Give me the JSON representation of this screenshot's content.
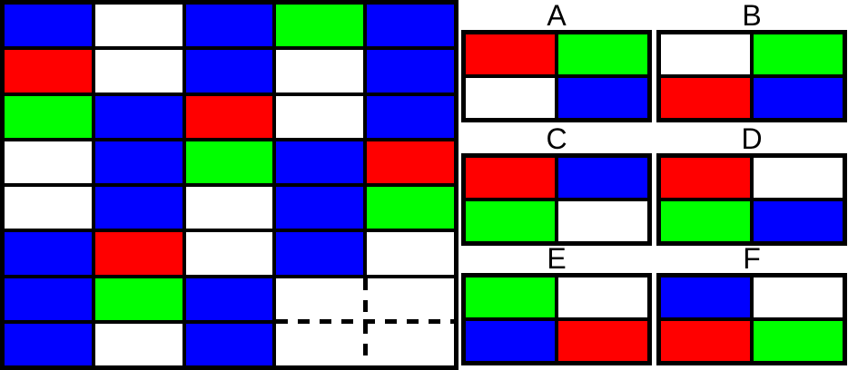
{
  "puzzle": {
    "description": "Pattern completion puzzle: 8x5 colored grid with a missing 2x2 region (dashed outline) and six candidate 2x2 answer tiles",
    "grid": {
      "rows": 8,
      "cols": 5,
      "cells": [
        [
          "blue",
          "white",
          "blue",
          "green",
          "blue"
        ],
        [
          "red",
          "white",
          "blue",
          "white",
          "blue"
        ],
        [
          "green",
          "blue",
          "red",
          "white",
          "blue"
        ],
        [
          "white",
          "blue",
          "green",
          "blue",
          "red"
        ],
        [
          "white",
          "blue",
          "white",
          "blue",
          "green"
        ],
        [
          "blue",
          "red",
          "white",
          "blue",
          "white"
        ],
        [
          "blue",
          "green",
          "blue",
          null,
          null
        ],
        [
          "blue",
          "white",
          "blue",
          null,
          null
        ]
      ],
      "missing_region": {
        "row_start": 7,
        "col_start": 4,
        "rows": 2,
        "cols": 2,
        "fill": "white",
        "divider_style": "dashed"
      }
    },
    "options": [
      {
        "label": "A",
        "cells": [
          [
            "red",
            "green"
          ],
          [
            "white",
            "blue"
          ]
        ]
      },
      {
        "label": "B",
        "cells": [
          [
            "white",
            "green"
          ],
          [
            "red",
            "blue"
          ]
        ]
      },
      {
        "label": "C",
        "cells": [
          [
            "red",
            "blue"
          ],
          [
            "green",
            "white"
          ]
        ]
      },
      {
        "label": "D",
        "cells": [
          [
            "red",
            "white"
          ],
          [
            "green",
            "blue"
          ]
        ]
      },
      {
        "label": "E",
        "cells": [
          [
            "green",
            "white"
          ],
          [
            "blue",
            "red"
          ]
        ]
      },
      {
        "label": "F",
        "cells": [
          [
            "blue",
            "white"
          ],
          [
            "red",
            "green"
          ]
        ]
      }
    ],
    "colors": {
      "red": "#ff0000",
      "green": "#00ff00",
      "blue": "#0000ff",
      "white": "#ffffff",
      "border": "#000000"
    }
  }
}
